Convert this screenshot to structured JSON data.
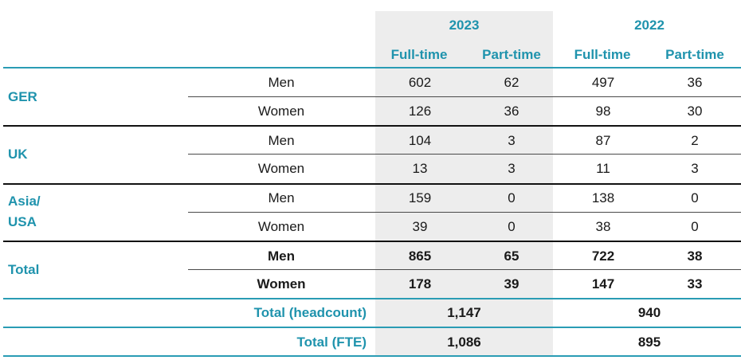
{
  "years": {
    "y2023": "2023",
    "y2022": "2022"
  },
  "columns": [
    "Full-time",
    "Part-time",
    "Full-time",
    "Part-time"
  ],
  "regions": {
    "ger": "GER",
    "uk": "UK",
    "asia_line1": "Asia/",
    "asia_line2": "USA",
    "total": "Total"
  },
  "rows": [
    {
      "gender": "Men",
      "values": [
        "602",
        "62",
        "497",
        "36"
      ]
    },
    {
      "gender": "Women",
      "values": [
        "126",
        "36",
        "98",
        "30"
      ]
    },
    {
      "gender": "Men",
      "values": [
        "104",
        "3",
        "87",
        "2"
      ]
    },
    {
      "gender": "Women",
      "values": [
        "13",
        "3",
        "11",
        "3"
      ]
    },
    {
      "gender": "Men",
      "values": [
        "159",
        "0",
        "138",
        "0"
      ]
    },
    {
      "gender": "Women",
      "values": [
        "39",
        "0",
        "38",
        "0"
      ]
    },
    {
      "gender": "Men",
      "values": [
        "865",
        "65",
        "722",
        "38"
      ]
    },
    {
      "gender": "Women",
      "values": [
        "178",
        "39",
        "147",
        "33"
      ]
    }
  ],
  "summary": [
    {
      "label": "Total (headcount)",
      "v2023": "1,147",
      "v2022": "940"
    },
    {
      "label": "Total (FTE)",
      "v2023": "1,086",
      "v2022": "895"
    }
  ],
  "colors": {
    "accent": "#1f93ad",
    "shade": "#ededed"
  }
}
